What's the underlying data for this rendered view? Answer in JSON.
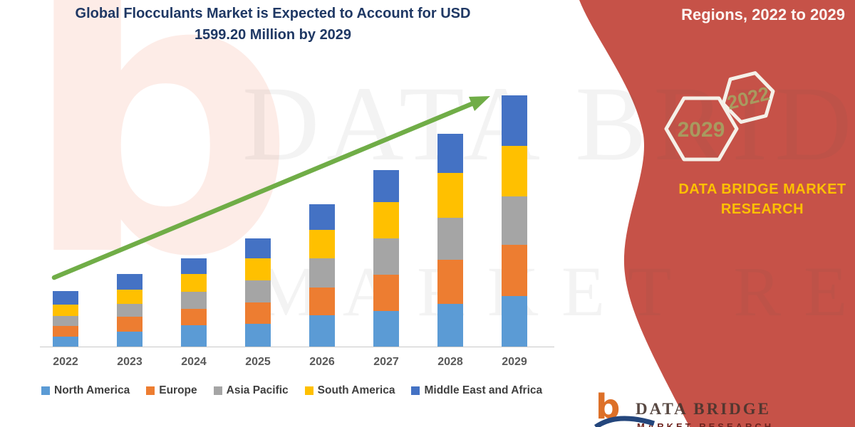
{
  "title": {
    "line1": "Global Flocculants Market is Expected to Account for USD",
    "line2": "1599.20 Million by 2029"
  },
  "banner": {
    "heading": "Regions, 2022 to 2029",
    "hexagon_years": [
      "2029",
      "2022"
    ],
    "brand_line1": "DATA BRIDGE MARKET",
    "brand_line2": "RESEARCH",
    "background_color": "#c65248",
    "brand_text_color": "#ffc000"
  },
  "watermark": {
    "letter": "b",
    "line1": "DATA BRIDGE",
    "line2": "MARKET RESEARCH"
  },
  "footer_logo": {
    "symbol": "b",
    "name": "DATA BRIDGE",
    "subline": "MARKET RESEARCH"
  },
  "chart_data": {
    "type": "bar",
    "stacked": true,
    "title": "Global Flocculants Market is Expected to Account for USD 1599.20 Million by 2029",
    "unit": "USD Million",
    "categories": [
      "2022",
      "2023",
      "2024",
      "2025",
      "2026",
      "2027",
      "2028",
      "2029"
    ],
    "series": [
      {
        "name": "North America",
        "color": "#5b9bd5",
        "values": [
          63,
          95,
          136,
          145,
          199,
          227,
          272,
          322
        ]
      },
      {
        "name": "Europe",
        "color": "#ed7d31",
        "values": [
          68,
          95,
          104,
          136,
          177,
          231,
          281,
          326
        ]
      },
      {
        "name": "Asia Pacific",
        "color": "#a5a5a5",
        "values": [
          63,
          82,
          109,
          140,
          186,
          231,
          267,
          308
        ]
      },
      {
        "name": "South America",
        "color": "#ffc000",
        "values": [
          73,
          91,
          113,
          140,
          181,
          231,
          285,
          322
        ]
      },
      {
        "name": "Middle East and Africa",
        "color": "#4472c4",
        "values": [
          86,
          100,
          100,
          127,
          163,
          204,
          249,
          321.2
        ]
      }
    ],
    "ylim": [
      0,
      1700
    ],
    "grid": false,
    "legend_position": "bottom",
    "trend_arrow": {
      "present": true,
      "color": "#70ad47",
      "direction": "up-right"
    }
  }
}
